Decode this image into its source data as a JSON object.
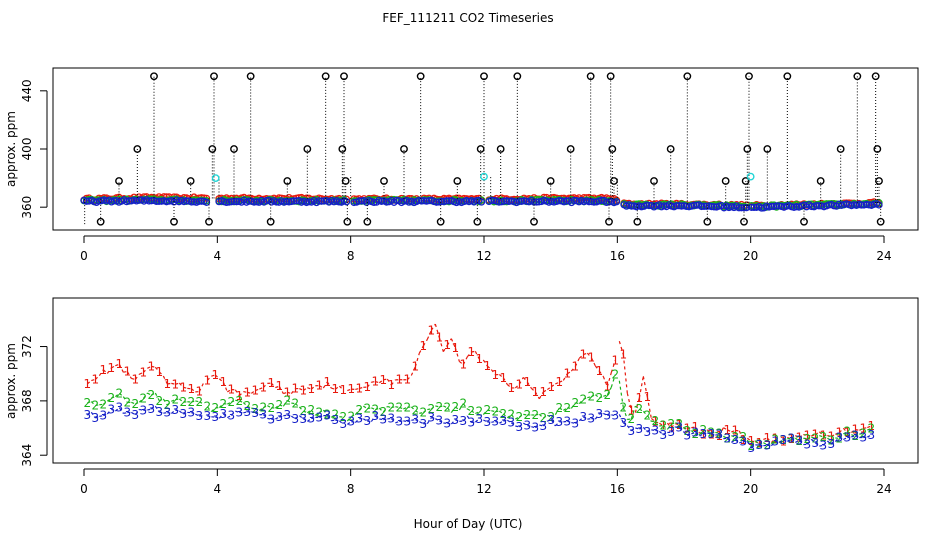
{
  "title": "FEF_111211  CO2 Timeseries",
  "xlabel": "Hour of Day (UTC)",
  "chart_data": [
    {
      "type": "scatter",
      "name": "top-panel",
      "ylabel": "approx. ppm",
      "xlim": [
        0,
        24
      ],
      "ylim": [
        345,
        455
      ],
      "xticks": [
        0,
        4,
        8,
        12,
        16,
        20,
        24
      ],
      "yticks": [
        360,
        400,
        440
      ],
      "baseline": {
        "x": [
          0,
          2,
          4,
          6,
          8,
          10,
          12,
          14,
          15.8,
          16.3,
          18,
          19.9,
          20.2,
          22,
          24
        ],
        "s1": [
          365.5,
          366.5,
          366,
          366,
          365.5,
          365.5,
          365.5,
          366,
          366,
          362,
          362,
          361,
          361,
          362,
          363
        ],
        "s2": [
          364.5,
          365,
          364.5,
          364.5,
          364.5,
          364.5,
          364.5,
          364.5,
          364.5,
          361.5,
          361.5,
          360.5,
          360.5,
          361.5,
          362.5
        ],
        "s3": [
          364,
          364.5,
          364,
          364,
          364,
          364,
          364,
          364,
          364,
          361,
          361,
          360,
          360,
          361,
          362
        ]
      },
      "spikes": [
        {
          "x": 0.5,
          "y": 350
        },
        {
          "x": 1.05,
          "y": 378
        },
        {
          "x": 1.6,
          "y": 400
        },
        {
          "x": 2.1,
          "y": 450
        },
        {
          "x": 2.7,
          "y": 350
        },
        {
          "x": 3.2,
          "y": 378
        },
        {
          "x": 3.75,
          "y": 350
        },
        {
          "x": 3.85,
          "y": 400
        },
        {
          "x": 3.9,
          "y": 450
        },
        {
          "x": 4.5,
          "y": 400
        },
        {
          "x": 5.0,
          "y": 450
        },
        {
          "x": 5.6,
          "y": 350
        },
        {
          "x": 6.1,
          "y": 378
        },
        {
          "x": 6.7,
          "y": 400
        },
        {
          "x": 7.25,
          "y": 450
        },
        {
          "x": 7.75,
          "y": 400
        },
        {
          "x": 7.8,
          "y": 450
        },
        {
          "x": 7.85,
          "y": 378
        },
        {
          "x": 7.9,
          "y": 350
        },
        {
          "x": 8.5,
          "y": 350
        },
        {
          "x": 9.0,
          "y": 378
        },
        {
          "x": 9.6,
          "y": 400
        },
        {
          "x": 10.1,
          "y": 450
        },
        {
          "x": 10.7,
          "y": 350
        },
        {
          "x": 11.2,
          "y": 378
        },
        {
          "x": 11.8,
          "y": 350
        },
        {
          "x": 11.9,
          "y": 400
        },
        {
          "x": 12.0,
          "y": 450
        },
        {
          "x": 12.5,
          "y": 400
        },
        {
          "x": 13.0,
          "y": 450
        },
        {
          "x": 13.5,
          "y": 350
        },
        {
          "x": 14.0,
          "y": 378
        },
        {
          "x": 14.6,
          "y": 400
        },
        {
          "x": 15.2,
          "y": 450
        },
        {
          "x": 15.75,
          "y": 350
        },
        {
          "x": 15.8,
          "y": 450
        },
        {
          "x": 15.85,
          "y": 400
        },
        {
          "x": 15.9,
          "y": 378
        },
        {
          "x": 16.6,
          "y": 350
        },
        {
          "x": 17.1,
          "y": 378
        },
        {
          "x": 17.6,
          "y": 400
        },
        {
          "x": 18.1,
          "y": 450
        },
        {
          "x": 18.7,
          "y": 350
        },
        {
          "x": 19.25,
          "y": 378
        },
        {
          "x": 19.8,
          "y": 350
        },
        {
          "x": 19.85,
          "y": 378
        },
        {
          "x": 19.9,
          "y": 400
        },
        {
          "x": 19.95,
          "y": 450
        },
        {
          "x": 20.5,
          "y": 400
        },
        {
          "x": 21.1,
          "y": 450
        },
        {
          "x": 21.6,
          "y": 350
        },
        {
          "x": 22.1,
          "y": 378
        },
        {
          "x": 22.7,
          "y": 400
        },
        {
          "x": 23.2,
          "y": 450
        },
        {
          "x": 23.75,
          "y": 450
        },
        {
          "x": 23.8,
          "y": 400
        },
        {
          "x": 23.85,
          "y": 378
        },
        {
          "x": 23.9,
          "y": 350
        }
      ],
      "highlights": [
        {
          "x": 3.95,
          "y": 380
        },
        {
          "x": 12.0,
          "y": 381
        },
        {
          "x": 20.0,
          "y": 381
        }
      ],
      "colors": {
        "s1": "#e8190d",
        "s2": "#1ab21a",
        "s3": "#1520c8",
        "spikes": "#000000",
        "highlights": "#22d6d6"
      }
    },
    {
      "type": "line",
      "name": "bottom-panel",
      "ylabel": "approx. ppm",
      "xlim": [
        0,
        24
      ],
      "ylim": [
        363.5,
        375.5
      ],
      "xticks": [
        0,
        4,
        8,
        12,
        16,
        20,
        24
      ],
      "yticks": [
        364,
        368,
        372
      ],
      "series": [
        {
          "name": "1",
          "marker": "1",
          "color": "#e8190d",
          "x": [
            0.1,
            0.7,
            1.0,
            1.5,
            2.0,
            2.5,
            3.0,
            3.5,
            3.8,
            4.3,
            4.9,
            5.5,
            6.1,
            6.8,
            7.4,
            7.9,
            8.3,
            8.8,
            9.3,
            9.8,
            10.2,
            10.5,
            10.8,
            11.0,
            11.3,
            11.6,
            11.9,
            12.2,
            12.6,
            12.9,
            13.2,
            13.6,
            14.0,
            14.4,
            14.8,
            15.1,
            15.4,
            15.7,
            15.95,
            16.1,
            16.35,
            16.6,
            16.75,
            17.0,
            17.3,
            17.6,
            17.9,
            18.2,
            18.5,
            18.9,
            19.2,
            19.5,
            19.8,
            20.0,
            20.4,
            20.8,
            21.2,
            21.6,
            22.0,
            22.4,
            22.8,
            23.2,
            23.6
          ],
          "y": [
            369.5,
            370.2,
            370.7,
            369.4,
            370.6,
            369.3,
            369.0,
            368.8,
            370.0,
            368.9,
            368.4,
            369.3,
            368.6,
            369.1,
            369.2,
            368.6,
            369.0,
            369.6,
            369.3,
            369.8,
            372.1,
            373.9,
            371.5,
            373.0,
            370.4,
            371.8,
            371.1,
            370.3,
            369.7,
            368.7,
            369.9,
            368.2,
            369.2,
            369.6,
            370.8,
            371.5,
            370.4,
            369.2,
            370.9,
            373.0,
            367.6,
            366.9,
            370.5,
            366.8,
            366.5,
            366.2,
            366.0,
            365.9,
            365.8,
            365.5,
            365.8,
            365.9,
            365.3,
            365.1,
            365.0,
            365.2,
            365.1,
            365.4,
            365.5,
            365.6,
            365.8,
            365.9,
            366.3
          ]
        },
        {
          "name": "2",
          "marker": "2",
          "color": "#1ab21a",
          "x": [
            0.1,
            0.6,
            1.0,
            1.5,
            2.0,
            2.5,
            3.0,
            3.5,
            3.8,
            4.3,
            4.9,
            5.5,
            6.1,
            6.8,
            7.4,
            7.9,
            8.3,
            8.8,
            9.3,
            9.8,
            10.2,
            10.6,
            11.0,
            11.4,
            11.8,
            12.2,
            12.6,
            13.0,
            13.4,
            13.8,
            14.2,
            14.6,
            15.0,
            15.4,
            15.7,
            16.0,
            16.2,
            16.4,
            16.6,
            16.8,
            17.1,
            17.4,
            17.7,
            18.0,
            18.4,
            18.8,
            19.1,
            19.4,
            19.8,
            20.0,
            20.4,
            20.8,
            21.2,
            21.6,
            22.0,
            22.4,
            22.8,
            23.2,
            23.6
          ],
          "y": [
            368.1,
            367.6,
            368.5,
            367.7,
            368.5,
            367.9,
            368.0,
            367.8,
            367.4,
            368.0,
            367.7,
            367.4,
            367.8,
            367.2,
            367.0,
            366.5,
            367.4,
            367.3,
            367.6,
            367.4,
            367.2,
            367.6,
            367.3,
            367.7,
            367.2,
            367.1,
            367.0,
            366.9,
            367.0,
            366.8,
            367.2,
            367.5,
            368.2,
            368.3,
            368.5,
            370.3,
            367.3,
            366.4,
            367.8,
            367.0,
            366.3,
            366.0,
            366.2,
            366.0,
            365.5,
            365.9,
            365.6,
            365.4,
            365.2,
            364.8,
            364.9,
            365.1,
            365.1,
            365.3,
            365.2,
            365.3,
            365.5,
            365.6,
            365.8
          ]
        },
        {
          "name": "3",
          "marker": "3",
          "color": "#1520c8",
          "x": [
            0.1,
            0.5,
            1.0,
            1.5,
            2.0,
            2.5,
            3.0,
            3.5,
            3.8,
            4.3,
            4.9,
            5.5,
            6.1,
            6.8,
            7.4,
            7.9,
            8.3,
            8.8,
            9.3,
            9.8,
            10.2,
            10.6,
            11.0,
            11.4,
            11.8,
            12.2,
            12.6,
            13.0,
            13.4,
            13.8,
            14.2,
            14.6,
            15.0,
            15.4,
            15.7,
            16.0,
            16.2,
            16.4,
            16.6,
            16.8,
            17.1,
            17.4,
            17.7,
            18.0,
            18.4,
            18.8,
            19.1,
            19.4,
            19.8,
            20.0,
            20.4,
            20.8,
            21.2,
            21.6,
            22.0,
            22.4,
            22.8,
            23.2,
            23.6
          ],
          "y": [
            367.2,
            366.8,
            367.4,
            367.0,
            367.5,
            367.0,
            367.2,
            367.0,
            366.6,
            367.0,
            367.1,
            366.7,
            367.0,
            366.7,
            366.7,
            366.4,
            366.6,
            366.7,
            366.6,
            366.7,
            366.5,
            366.6,
            366.4,
            366.7,
            366.5,
            366.6,
            366.4,
            366.2,
            366.1,
            366.3,
            366.4,
            366.5,
            366.6,
            366.8,
            366.9,
            367.1,
            366.1,
            365.9,
            366.2,
            366.0,
            365.7,
            365.4,
            365.9,
            365.7,
            365.4,
            365.5,
            365.3,
            365.2,
            365.0,
            364.7,
            364.8,
            364.9,
            365.0,
            365.0,
            364.9,
            365.0,
            365.2,
            365.3,
            365.5
          ]
        }
      ]
    }
  ]
}
